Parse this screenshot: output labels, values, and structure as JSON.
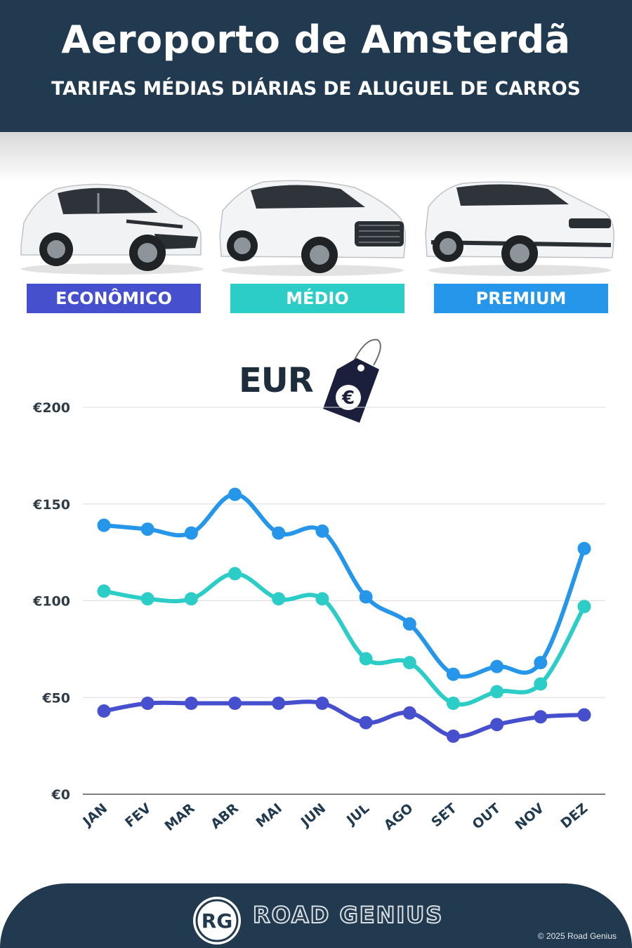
{
  "header": {
    "title": "Aeroporto de Amsterdã",
    "subtitle": "TARIFAS MÉDIAS DIÁRIAS DE ALUGUEL DE CARROS"
  },
  "categories": {
    "economy": "ECONÔMICO",
    "medium": "MÉDIO",
    "premium": "PREMIUM"
  },
  "currency": {
    "label": "EUR",
    "symbol": "€"
  },
  "chart_data": {
    "type": "line",
    "categories": [
      "JAN",
      "FEV",
      "MAR",
      "ABR",
      "MAI",
      "JUN",
      "JUL",
      "AGO",
      "SET",
      "OUT",
      "NOV",
      "DEZ"
    ],
    "series": [
      {
        "name": "PREMIUM",
        "color": "#2596ea",
        "values": [
          139,
          137,
          135,
          155,
          135,
          136,
          102,
          88,
          62,
          66,
          68,
          127
        ]
      },
      {
        "name": "MÉDIO",
        "color": "#2ccdc6",
        "values": [
          105,
          101,
          101,
          114,
          101,
          101,
          70,
          68,
          47,
          53,
          57,
          97
        ]
      },
      {
        "name": "ECONÔMICO",
        "color": "#4650cf",
        "values": [
          43,
          47,
          47,
          47,
          47,
          47,
          37,
          42,
          30,
          36,
          40,
          41
        ]
      }
    ],
    "y_ticks": [
      "€0",
      "€50",
      "€100",
      "€150",
      "€200"
    ],
    "ylim": [
      0,
      200
    ],
    "grid": true
  },
  "footer": {
    "logo_text": "RG",
    "brand": "ROAD GENIUS",
    "copyright": "© 2025 Road Genius"
  }
}
